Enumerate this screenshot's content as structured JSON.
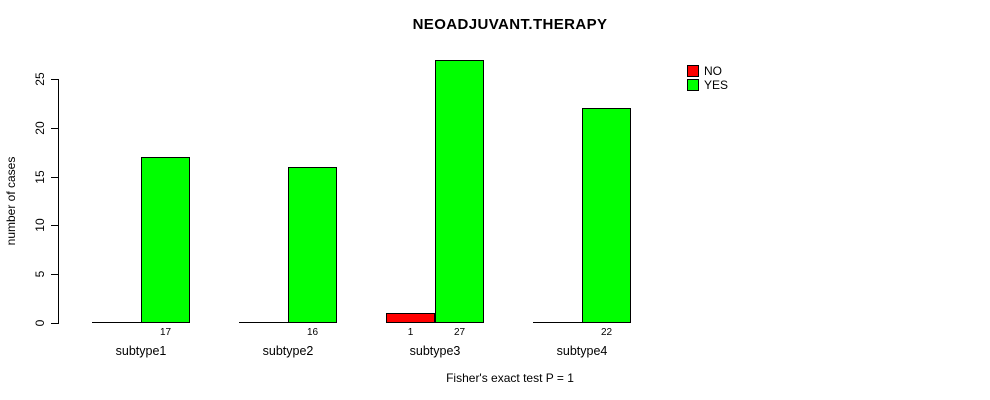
{
  "chart_data": {
    "type": "bar",
    "title": "NEOADJUVANT.THERAPY",
    "categories": [
      "subtype1",
      "subtype2",
      "subtype3",
      "subtype4"
    ],
    "series": [
      {
        "name": "NO",
        "color": "#ff0000",
        "values": [
          0,
          0,
          1,
          0
        ]
      },
      {
        "name": "YES",
        "color": "#00ff00",
        "values": [
          17,
          16,
          27,
          22
        ]
      }
    ],
    "bar_value_labels": [
      {
        "category": "subtype1",
        "series": "YES",
        "label": "17"
      },
      {
        "category": "subtype2",
        "series": "YES",
        "label": "16"
      },
      {
        "category": "subtype3",
        "series": "NO",
        "label": "1"
      },
      {
        "category": "subtype3",
        "series": "YES",
        "label": "27"
      },
      {
        "category": "subtype4",
        "series": "YES",
        "label": "22"
      }
    ],
    "ylabel": "number of cases",
    "xlabel": "Fisher's exact test P = 1",
    "yticks": [
      0,
      5,
      10,
      15,
      20,
      25
    ],
    "ylim": [
      0,
      27
    ],
    "grid": false,
    "legend_position": "top-right",
    "axis_color": "#000000",
    "background_color": "#ffffff"
  }
}
